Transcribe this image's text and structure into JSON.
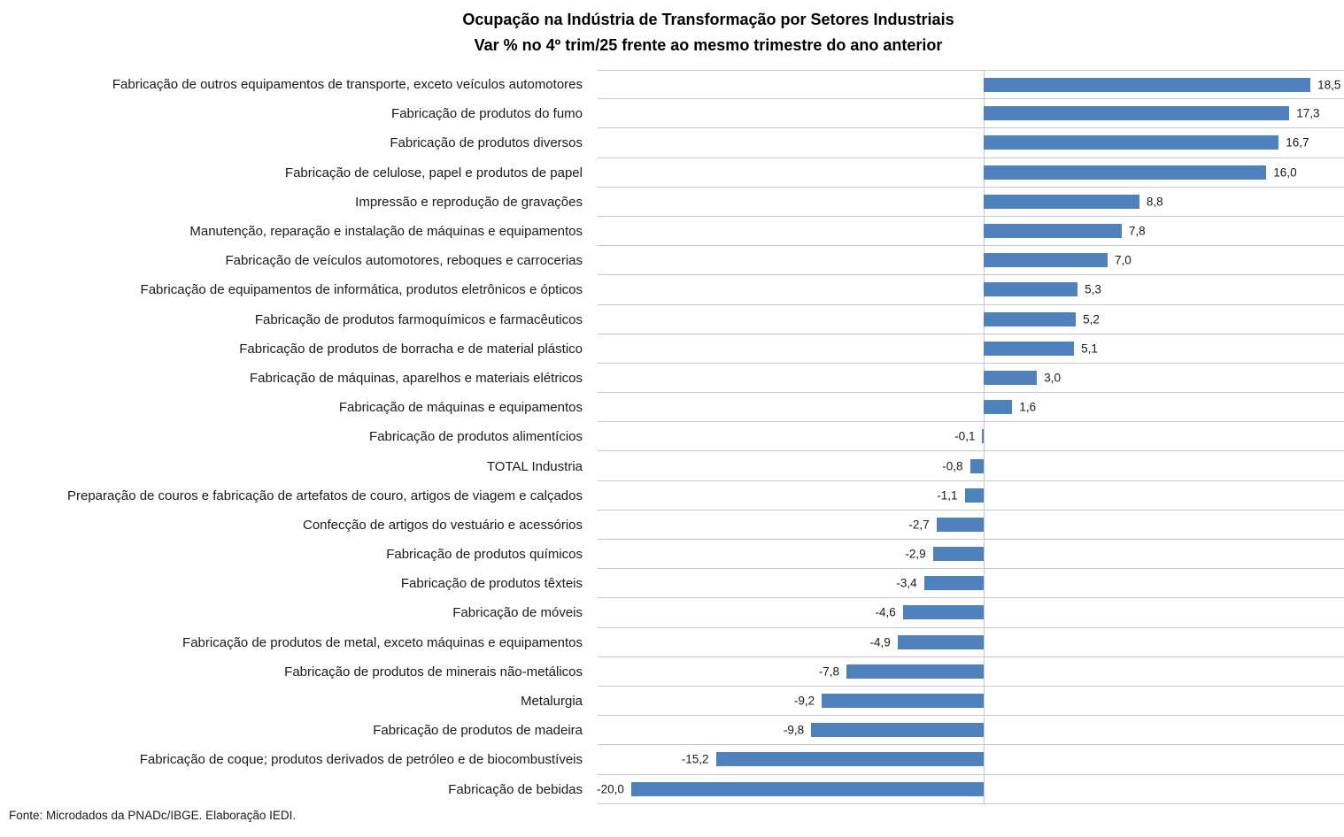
{
  "title": {
    "line1": "Ocupação na Indústria de Transformação por Setores Industriais",
    "line2": "Var % no 4º trim/25 frente ao mesmo trimestre do ano anterior"
  },
  "source": "Fonte: Microdados da PNADc/IBGE. Elaboração IEDI.",
  "colors": {
    "bar": "#4F81BD",
    "gridline": "#C6C6C6",
    "text": "#1A1A1A",
    "title_text": "#000000"
  },
  "chart_data": {
    "type": "bar",
    "orientation": "horizontal",
    "title": "Ocupação na Indústria de Transformação por Setores Industriais — Var % no 4º trim/25 frente ao mesmo trimestre do ano anterior",
    "xlabel": "",
    "ylabel": "",
    "xlim": [
      -21.9,
      20.4
    ],
    "grid": "row separators, horizontal light gray; vertical zero axis line",
    "legend": "none",
    "decimal_separator": ",",
    "categories": [
      "Fabricação de outros equipamentos de transporte, exceto veículos automotores",
      "Fabricação de produtos do fumo",
      "Fabricação de produtos diversos",
      "Fabricação de celulose, papel e produtos de papel",
      "Impressão e reprodução de gravações",
      "Manutenção, reparação e instalação de máquinas e equipamentos",
      "Fabricação de veículos automotores, reboques e carrocerias",
      "Fabricação de equipamentos de informática, produtos eletrônicos e ópticos",
      "Fabricação de produtos farmoquímicos e farmacêuticos",
      "Fabricação de produtos de borracha e de material plástico",
      "Fabricação de máquinas, aparelhos e materiais elétricos",
      "Fabricação de máquinas e equipamentos",
      "Fabricação de produtos alimentícios",
      "TOTAL Industria",
      "Preparação de couros e fabricação de artefatos de couro, artigos de viagem e calçados",
      "Confecção de artigos do vestuário e acessórios",
      "Fabricação de produtos químicos",
      "Fabricação de produtos têxteis",
      "Fabricação de móveis",
      "Fabricação de produtos de metal, exceto máquinas e equipamentos",
      "Fabricação de produtos de minerais não-metálicos",
      "Metalurgia",
      "Fabricação de produtos de madeira",
      "Fabricação de coque; produtos derivados de petróleo e de biocombustíveis",
      "Fabricação de bebidas"
    ],
    "values": [
      18.5,
      17.3,
      16.7,
      16.0,
      8.8,
      7.8,
      7.0,
      5.3,
      5.2,
      5.1,
      3.0,
      1.6,
      -0.1,
      -0.8,
      -1.1,
      -2.7,
      -2.9,
      -3.4,
      -4.6,
      -4.9,
      -7.8,
      -9.2,
      -9.8,
      -15.2,
      -20.0
    ],
    "value_labels": [
      "18,5",
      "17,3",
      "16,7",
      "16,0",
      "8,8",
      "7,8",
      "7,0",
      "5,3",
      "5,2",
      "5,1",
      "3,0",
      "1,6",
      "-0,1",
      "-0,8",
      "-1,1",
      "-2,7",
      "-2,9",
      "-3,4",
      "-4,6",
      "-4,9",
      "-7,8",
      "-9,2",
      "-9,8",
      "-15,2",
      "-20,0"
    ]
  }
}
